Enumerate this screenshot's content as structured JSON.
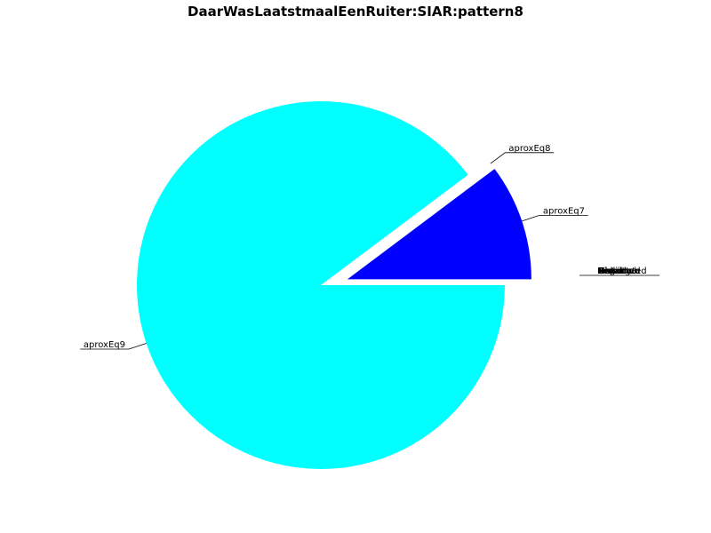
{
  "chart_data": {
    "type": "pie",
    "title": "DaarWasLaatstmaalEenRuiter:SIAR:pattern8",
    "slices": [
      {
        "label": "aproxEq9",
        "value": 74.5,
        "color": "#00ffff",
        "explode": false
      },
      {
        "label": "aproxEq8",
        "value": 0.0,
        "color": "#ff0000",
        "explode": true
      },
      {
        "label": "aproxEq7",
        "value": 8.5,
        "color": "#0000ff",
        "explode": true
      }
    ],
    "stacked_labels": [
      "Distributed",
      "Regional",
      "Expected",
      "Remote",
      "Global",
      "Local",
      "Missing",
      "Unknown"
    ]
  }
}
